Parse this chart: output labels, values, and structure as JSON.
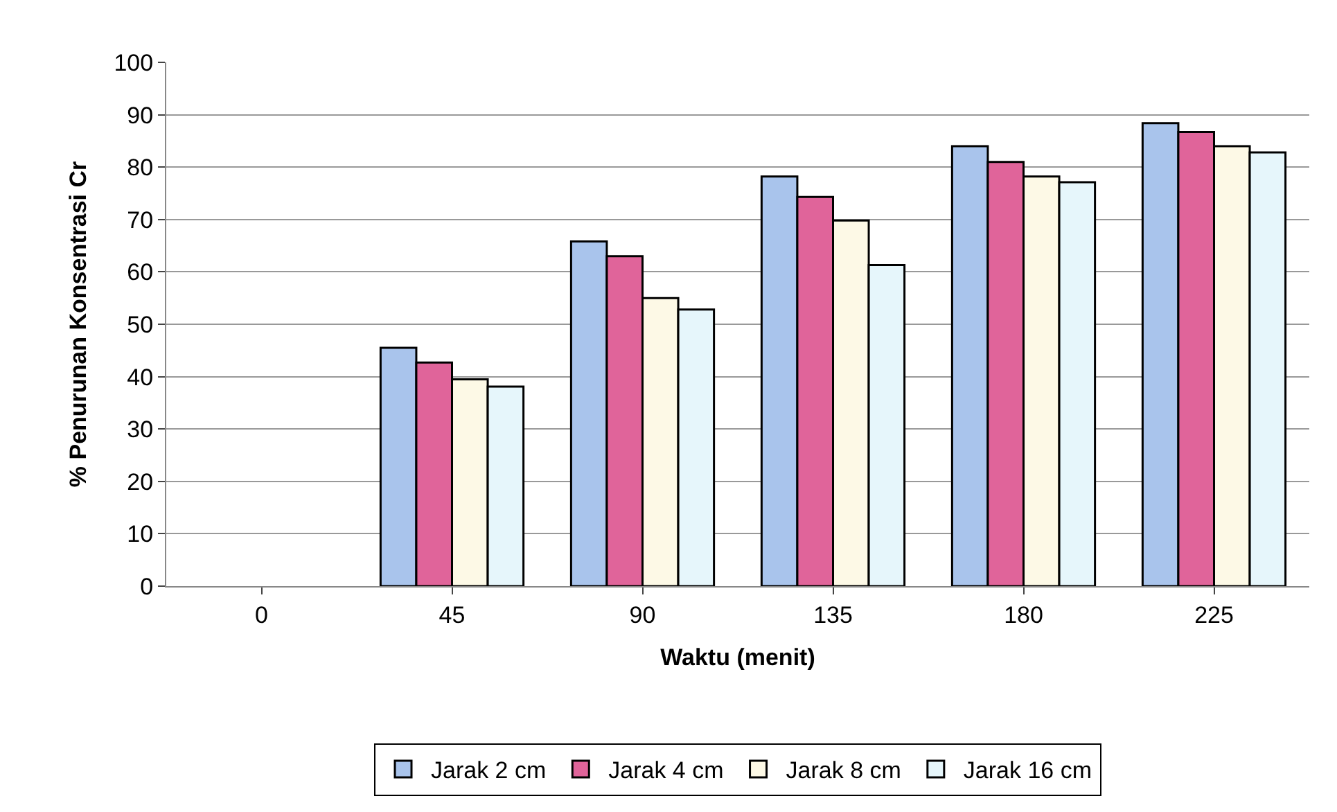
{
  "chart_data": {
    "type": "bar",
    "xlabel": "Waktu (menit)",
    "ylabel": "% Penurunan Konsentrasi Cr",
    "categories": [
      "0",
      "45",
      "90",
      "135",
      "180",
      "225"
    ],
    "series": [
      {
        "name": "Jarak 2 cm",
        "color": "#a9c4ec",
        "values": [
          null,
          45.5,
          65.8,
          78.2,
          84,
          88.4
        ]
      },
      {
        "name": "Jarak 4 cm",
        "color": "#e0649a",
        "values": [
          null,
          42.7,
          63,
          74.3,
          81,
          86.7
        ]
      },
      {
        "name": "Jarak 8 cm",
        "color": "#fdf9e6",
        "values": [
          null,
          39.5,
          55,
          69.8,
          78.2,
          84
        ]
      },
      {
        "name": "Jarak 16 cm",
        "color": "#e6f6fb",
        "values": [
          null,
          38.1,
          52.8,
          61.3,
          77.1,
          82.8
        ]
      }
    ],
    "ylim": [
      0,
      100
    ],
    "yticks": [
      0,
      10,
      20,
      30,
      40,
      50,
      60,
      70,
      80,
      90,
      100
    ],
    "grid": "y",
    "legend": "bottom"
  }
}
